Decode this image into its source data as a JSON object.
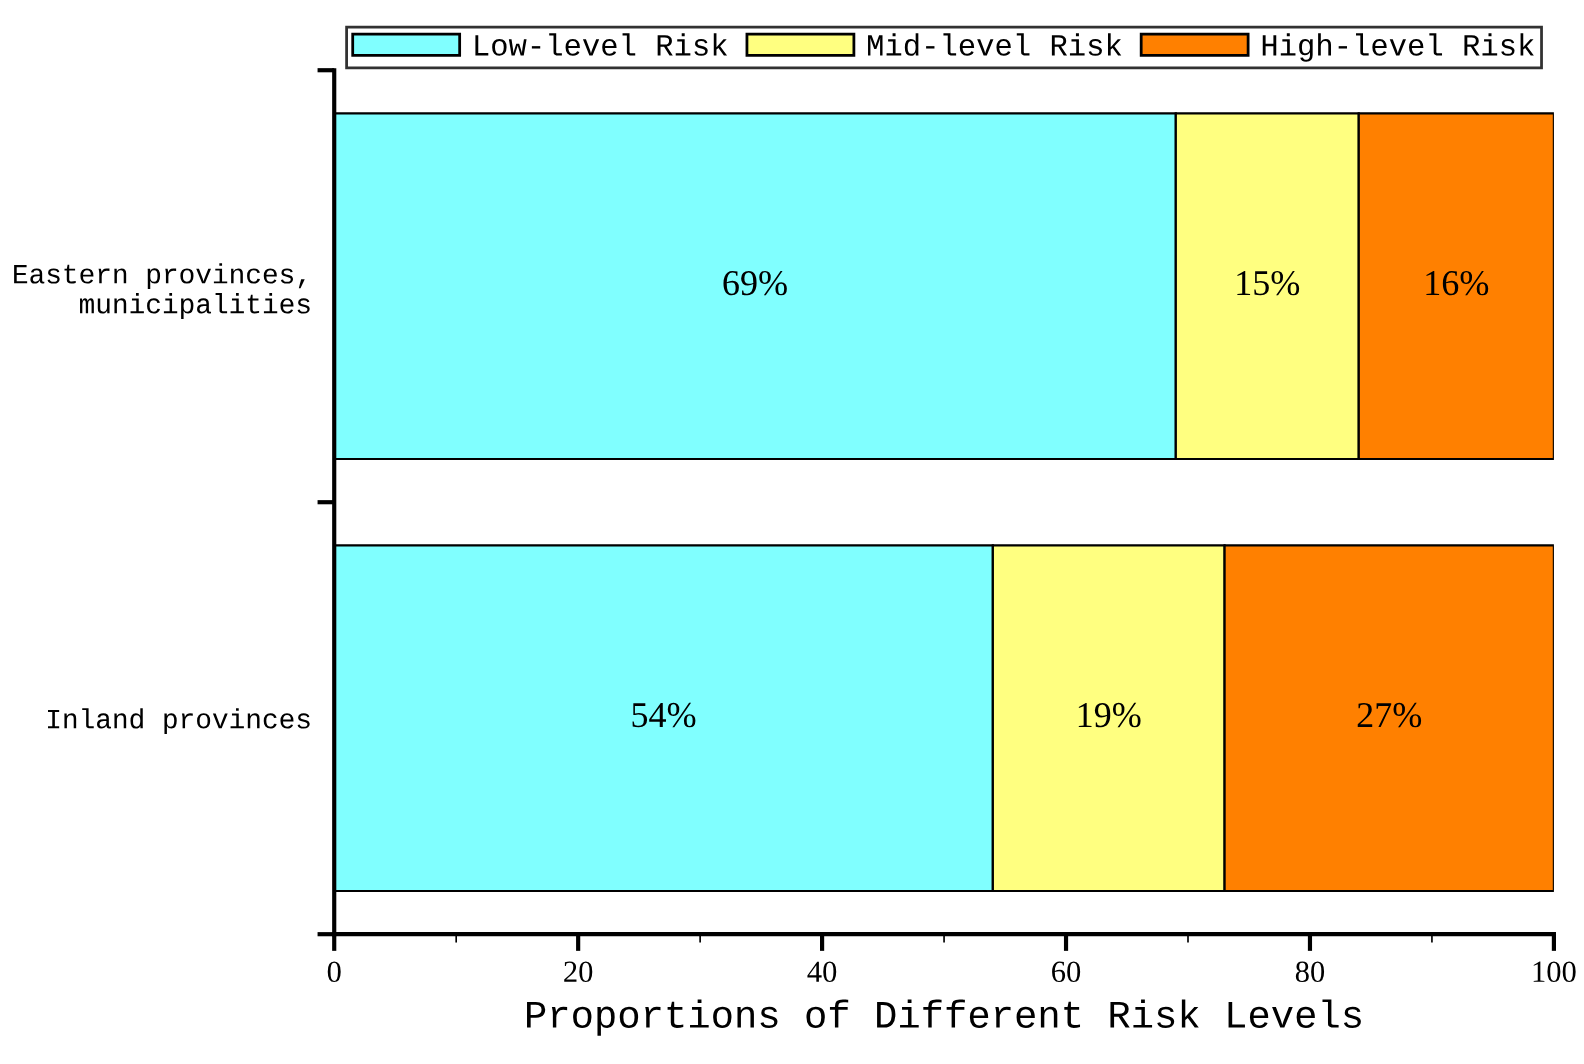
{
  "chart_data": {
    "type": "bar",
    "orientation": "horizontal",
    "stacked": true,
    "xlabel": "Proportions of Different Risk Levels",
    "categories": [
      "Eastern provinces,\nmunicipalities",
      "Inland provinces"
    ],
    "series": [
      {
        "name": "Low-level Risk",
        "color": "#80ffff",
        "values": [
          69,
          54
        ],
        "value_labels": [
          "69%",
          "54%"
        ]
      },
      {
        "name": "Mid-level Risk",
        "color": "#ffff80",
        "values": [
          15,
          19
        ],
        "value_labels": [
          "15%",
          "19%"
        ]
      },
      {
        "name": "High-level Risk",
        "color": "#ff8000",
        "values": [
          16,
          27
        ],
        "value_labels": [
          "16%",
          "27%"
        ]
      }
    ],
    "xlim": [
      0,
      100
    ],
    "xticks": [
      0,
      20,
      40,
      60,
      80,
      100
    ],
    "legend": "top",
    "grid": false
  }
}
